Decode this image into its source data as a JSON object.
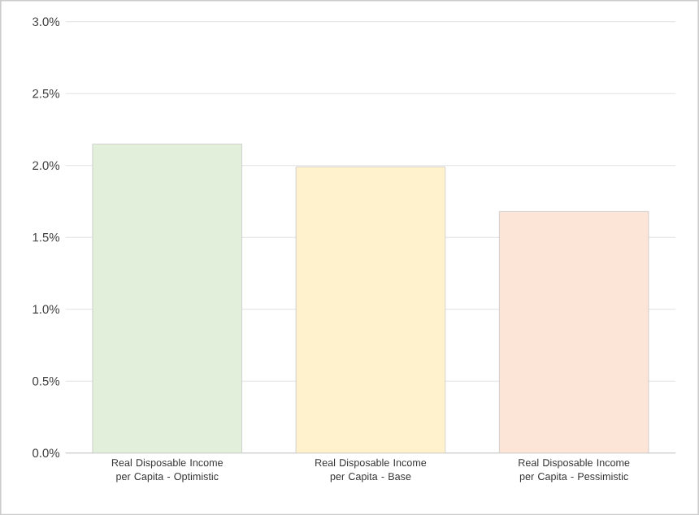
{
  "chart_data": {
    "type": "bar",
    "categories": [
      "Real Disposable Income per Capita - Optimistic",
      "Real Disposable Income per Capita - Base",
      "Real Disposable Income per Capita - Pessimistic"
    ],
    "values": [
      2.15,
      1.99,
      1.68
    ],
    "colors": [
      "#e2efda",
      "#fff2cc",
      "#fce4d6"
    ],
    "ylim": [
      0,
      3
    ],
    "yticks": [
      {
        "value": 0,
        "label": "0.0%"
      },
      {
        "value": 0.5,
        "label": "0.5%"
      },
      {
        "value": 1,
        "label": "1.0%"
      },
      {
        "value": 1.5,
        "label": "1.5%"
      },
      {
        "value": 2,
        "label": "2.0%"
      },
      {
        "value": 2.5,
        "label": "2.5%"
      },
      {
        "value": 3,
        "label": "3.0%"
      }
    ],
    "grid": "y"
  }
}
